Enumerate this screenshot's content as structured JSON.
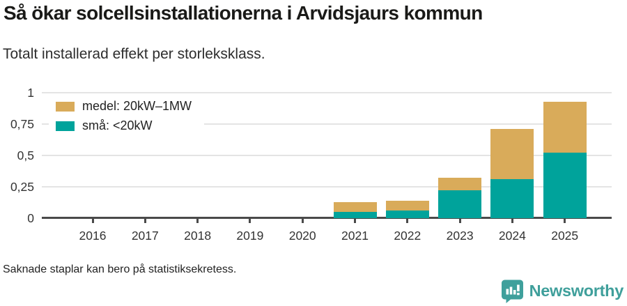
{
  "header": {
    "title": "Så ökar solcellsinstallationerna i Arvidsjaurs kommun",
    "subtitle": "Totalt installerad effekt per storleksklass."
  },
  "legend": [
    {
      "label": "medel: 20kW–1MW",
      "color": "#d9ab5a"
    },
    {
      "label": "små: <20kW",
      "color": "#00a39b"
    }
  ],
  "chart_data": {
    "type": "bar",
    "stacked": true,
    "title": "Så ökar solcellsinstallationerna i Arvidsjaurs kommun",
    "subtitle": "Totalt installerad effekt per storleksklass.",
    "categories": [
      "2016",
      "2017",
      "2018",
      "2019",
      "2020",
      "2021",
      "2022",
      "2023",
      "2024",
      "2025"
    ],
    "series": [
      {
        "name": "små: <20kW",
        "color": "#00a39b",
        "values": [
          0,
          0,
          0,
          0,
          0,
          0.05,
          0.06,
          0.22,
          0.31,
          0.52
        ]
      },
      {
        "name": "medel: 20kW–1MW",
        "color": "#d9ab5a",
        "values": [
          0,
          0,
          0,
          0,
          0,
          0.08,
          0.08,
          0.1,
          0.4,
          0.41
        ]
      }
    ],
    "ylim": [
      0,
      1
    ],
    "yticks": {
      "values": [
        0,
        0.25,
        0.5,
        0.75,
        1
      ],
      "labels": [
        "0",
        "0,25",
        "0,5",
        "0,75",
        "1"
      ]
    },
    "grid": "horizontal",
    "legend_position": "top-left",
    "note": "Saknade staplar kan bero på statistiksekretess."
  },
  "footer": {
    "note": "Saknade staplar kan bero på statistiksekretess.",
    "brand": "Newsworthy"
  },
  "colors": {
    "sma": "#00a39b",
    "medel": "#d9ab5a",
    "brand_teal": "#3f9f9b",
    "axis": "#4a4a4a",
    "grid": "#e4e4e4"
  }
}
